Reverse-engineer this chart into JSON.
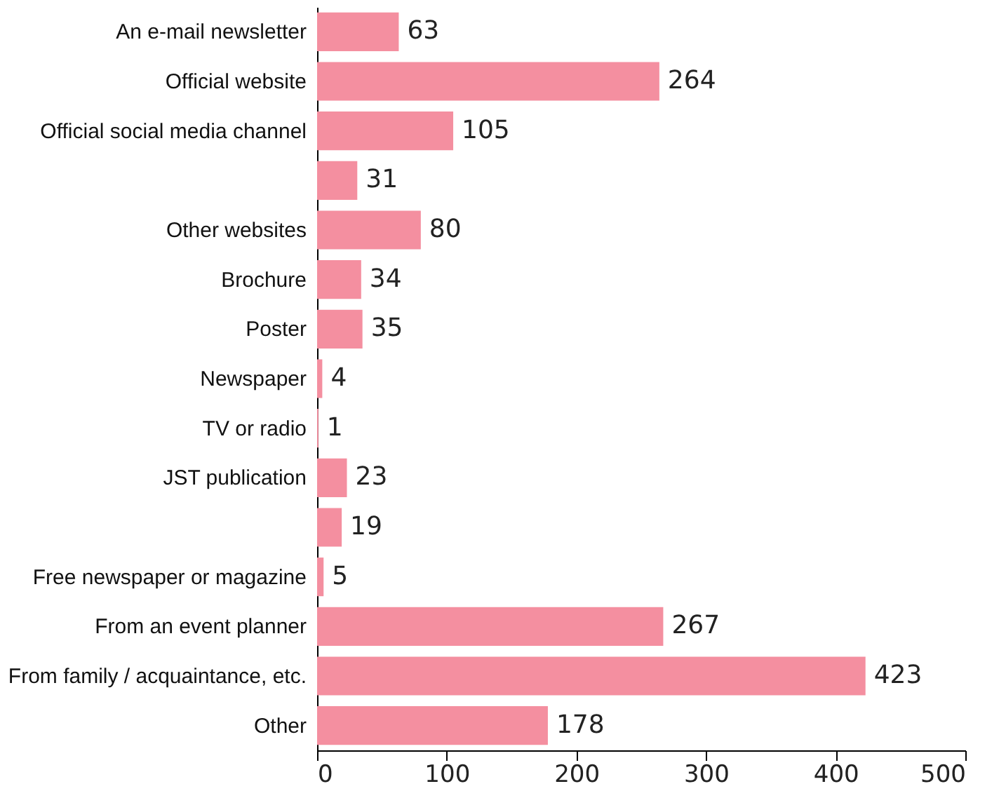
{
  "chart_data": {
    "type": "bar",
    "orientation": "horizontal",
    "categories": [
      "An e-mail newsletter",
      "Official website",
      "Official social media channel",
      null,
      "Other websites",
      "Brochure",
      "Poster",
      "Newspaper",
      "TV or radio",
      "JST publication",
      null,
      "Free newspaper or magazine",
      "From an event planner",
      "From family / acquaintance, etc.",
      "Other"
    ],
    "values": [
      63,
      264,
      105,
      31,
      80,
      34,
      35,
      4,
      1,
      23,
      19,
      5,
      267,
      423,
      178
    ],
    "color": "#f48fa0",
    "xlim": [
      0,
      500
    ],
    "xticks": [
      0,
      100,
      200,
      300,
      400,
      500
    ],
    "data_labels": true,
    "grid": false
  }
}
